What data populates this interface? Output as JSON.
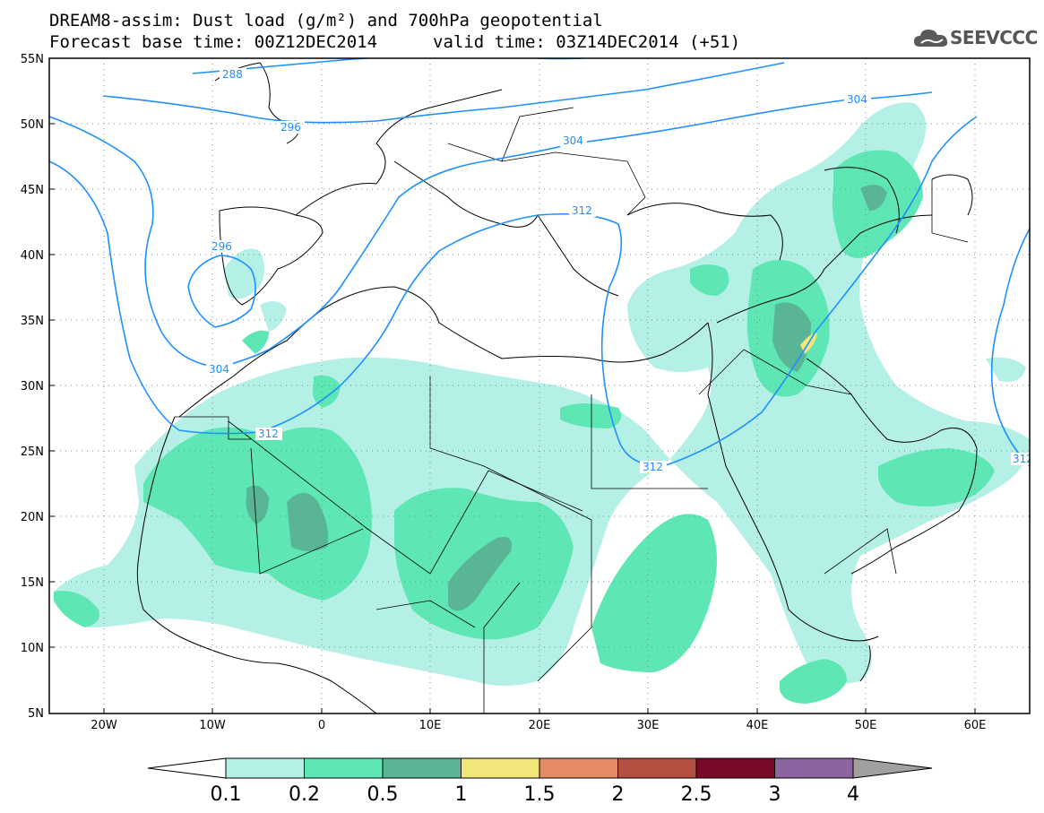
{
  "title": {
    "line1": "DREAM8-assim: Dust load (g/m²) and 700hPa geopotential",
    "base_time": "Forecast base time: 00Z12DEC2014",
    "valid_time": "valid time: 03Z14DEC2014 (+51)"
  },
  "logo": {
    "text": "SEEVCCC",
    "icon": "cloud-logo-icon"
  },
  "map": {
    "lon_range": [
      -25,
      65
    ],
    "lat_range": [
      5,
      55
    ],
    "lon_ticks": [
      "20W",
      "10W",
      "0",
      "10E",
      "20E",
      "30E",
      "40E",
      "50E",
      "60E"
    ],
    "lat_ticks": [
      "55N",
      "50N",
      "45N",
      "40N",
      "35N",
      "30N",
      "25N",
      "20N",
      "15N",
      "10N",
      "5N"
    ],
    "grid": "dotted",
    "contour_labels": [
      "288",
      "296",
      "304",
      "312",
      "296",
      "304",
      "312",
      "304",
      "312",
      "312"
    ],
    "contour_color": "#1e90ff"
  },
  "colorbar": {
    "labels": [
      "0.1",
      "0.2",
      "0.5",
      "1",
      "1.5",
      "2",
      "2.5",
      "3",
      "4"
    ],
    "colors": [
      "#ffffff",
      "#b4f0e6",
      "#5ee6b4",
      "#5ab496",
      "#f0e67a",
      "#e68c64",
      "#b45040",
      "#7a0a28",
      "#8c64a0",
      "#a0a0a0"
    ]
  }
}
